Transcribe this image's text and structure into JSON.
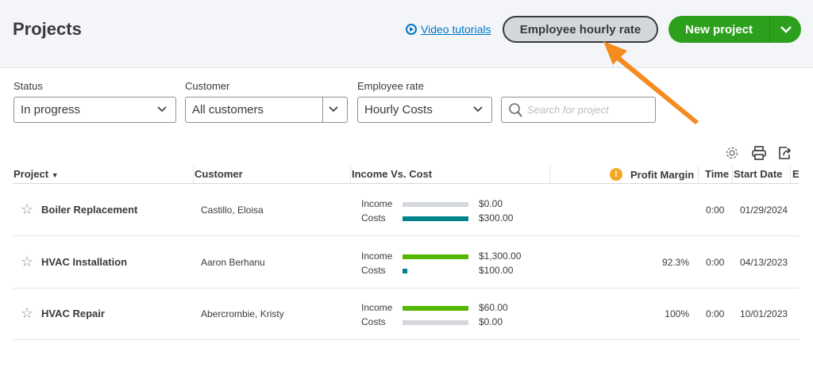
{
  "header": {
    "title": "Projects",
    "video_tutorials": "Video tutorials",
    "employee_hourly_rate": "Employee hourly rate",
    "new_project": "New project"
  },
  "filters": {
    "status": {
      "label": "Status",
      "value": "In progress"
    },
    "customer": {
      "label": "Customer",
      "value": "All customers"
    },
    "employee_rate": {
      "label": "Employee rate",
      "value": "Hourly Costs"
    },
    "search_placeholder": "Search for project"
  },
  "table": {
    "columns": {
      "project": "Project",
      "customer": "Customer",
      "income_vs_cost": "Income Vs. Cost",
      "profit_margin": "Profit Margin",
      "time": "Time",
      "start_date": "Start Date",
      "end": "E"
    },
    "income_label": "Income",
    "costs_label": "Costs",
    "rows": [
      {
        "project": "Boiler Replacement",
        "customer": "Castillo, Eloisa",
        "income": "$0.00",
        "costs": "$300.00",
        "income_fraction": 0,
        "costs_fraction": 1,
        "profit_margin": "",
        "time": "0:00",
        "start_date": "01/29/2024"
      },
      {
        "project": "HVAC Installation",
        "customer": "Aaron Berhanu",
        "income": "$1,300.00",
        "costs": "$100.00",
        "income_fraction": 1,
        "costs_fraction": 0.077,
        "profit_margin": "92.3%",
        "time": "0:00",
        "start_date": "04/13/2023"
      },
      {
        "project": "HVAC Repair",
        "customer": "Abercrombie, Kristy",
        "income": "$60.00",
        "costs": "$0.00",
        "income_fraction": 1,
        "costs_fraction": 0,
        "profit_margin": "100%",
        "time": "0:00",
        "start_date": "10/01/2023"
      }
    ]
  },
  "colors": {
    "income": "#53b700",
    "costs": "#00838a",
    "empty": "#d4d7dc",
    "accent": "#2ca01c",
    "annotation_arrow": "#f58a1f"
  }
}
